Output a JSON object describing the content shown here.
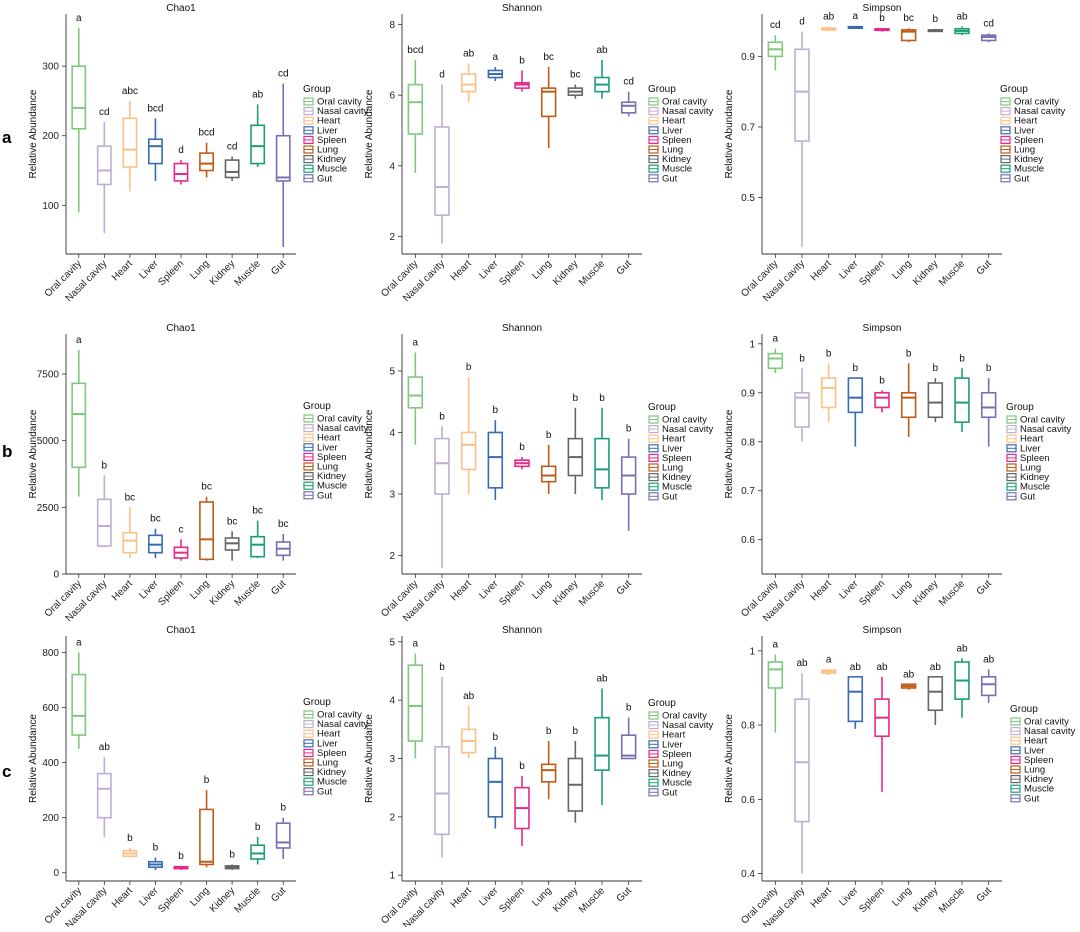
{
  "figure": {
    "group_legend_title": "Group",
    "y_axis_label": "Relative Abundance",
    "groups": [
      "Oral cavity",
      "Nasal cavity",
      "Heart",
      "Liver",
      "Spleen",
      "Lung",
      "Kidney",
      "Muscle",
      "Gut"
    ],
    "group_colors": [
      "#7fc97f",
      "#beaed4",
      "#fdc086",
      "#386cb0",
      "#e7298a",
      "#bf5b17",
      "#666666",
      "#1b9e77",
      "#7570b3"
    ],
    "row_labels": [
      "a",
      "b",
      "c"
    ]
  },
  "chart_data": [
    {
      "type": "box",
      "row": "a",
      "title": "Chao1",
      "ylabel": "Relative Abundance",
      "categories": [
        "Oral cavity",
        "Nasal cavity",
        "Heart",
        "Liver",
        "Spleen",
        "Lung",
        "Kidney",
        "Muscle",
        "Gut"
      ],
      "ylim": [
        30,
        375
      ],
      "yticks": [
        100,
        200,
        300
      ],
      "boxes": [
        [
          90,
          210,
          240,
          300,
          355
        ],
        [
          60,
          130,
          150,
          185,
          220
        ],
        [
          120,
          155,
          180,
          225,
          250
        ],
        [
          135,
          160,
          185,
          195,
          225
        ],
        [
          130,
          135,
          145,
          160,
          165
        ],
        [
          140,
          150,
          160,
          175,
          190
        ],
        [
          135,
          140,
          148,
          165,
          170
        ],
        [
          155,
          160,
          185,
          215,
          245
        ],
        [
          40,
          135,
          140,
          200,
          275
        ]
      ],
      "letters": [
        "a",
        "cd",
        "abc",
        "bcd",
        "d",
        "bcd",
        "cd",
        "ab",
        "cd"
      ]
    },
    {
      "type": "box",
      "row": "a",
      "title": "Shannon",
      "ylabel": "Relative Abundance",
      "categories": [
        "Oral cavity",
        "Nasal cavity",
        "Heart",
        "Liver",
        "Spleen",
        "Lung",
        "Kidney",
        "Muscle",
        "Gut"
      ],
      "ylim": [
        1.5,
        8.3
      ],
      "yticks": [
        2,
        4,
        6,
        8
      ],
      "boxes": [
        [
          3.8,
          4.9,
          5.8,
          6.3,
          7.0
        ],
        [
          1.8,
          2.6,
          3.4,
          5.1,
          6.3
        ],
        [
          5.8,
          6.1,
          6.3,
          6.6,
          6.9
        ],
        [
          6.4,
          6.5,
          6.6,
          6.7,
          6.8
        ],
        [
          6.1,
          6.2,
          6.3,
          6.35,
          6.7
        ],
        [
          4.5,
          5.4,
          6.1,
          6.2,
          6.8
        ],
        [
          5.9,
          6.0,
          6.1,
          6.2,
          6.3
        ],
        [
          5.9,
          6.1,
          6.3,
          6.5,
          7.0
        ],
        [
          5.4,
          5.5,
          5.7,
          5.8,
          6.1
        ]
      ],
      "letters": [
        "bcd",
        "d",
        "ab",
        "a",
        "b",
        "bc",
        "bc",
        "ab",
        "cd"
      ]
    },
    {
      "type": "box",
      "row": "a",
      "title": "Simpson",
      "ylabel": "Relative Abundance",
      "categories": [
        "Oral cavity",
        "Nasal cavity",
        "Heart",
        "Liver",
        "Spleen",
        "Lung",
        "Kidney",
        "Muscle",
        "Gut"
      ],
      "ylim": [
        0.34,
        1.02
      ],
      "yticks": [
        0.5,
        0.7,
        0.9
      ],
      "boxes": [
        [
          0.86,
          0.9,
          0.92,
          0.94,
          0.96
        ],
        [
          0.36,
          0.66,
          0.8,
          0.92,
          0.97
        ],
        [
          0.975,
          0.975,
          0.978,
          0.98,
          0.985
        ],
        [
          0.978,
          0.98,
          0.982,
          0.984,
          0.986
        ],
        [
          0.97,
          0.975,
          0.977,
          0.978,
          0.98
        ],
        [
          0.94,
          0.945,
          0.97,
          0.975,
          0.98
        ],
        [
          0.97,
          0.972,
          0.974,
          0.975,
          0.978
        ],
        [
          0.96,
          0.965,
          0.972,
          0.978,
          0.985
        ],
        [
          0.94,
          0.945,
          0.955,
          0.96,
          0.965
        ]
      ],
      "letters": [
        "cd",
        "d",
        "ab",
        "a",
        "b",
        "bc",
        "b",
        "ab",
        "cd"
      ]
    },
    {
      "type": "box",
      "row": "b",
      "title": "Chao1",
      "ylabel": "Relative Abundance",
      "categories": [
        "Oral cavity",
        "Nasal cavity",
        "Heart",
        "Liver",
        "Spleen",
        "Lung",
        "Kidney",
        "Muscle",
        "Gut"
      ],
      "ylim": [
        0,
        9000
      ],
      "yticks": [
        0,
        2500,
        5000,
        7500
      ],
      "boxes": [
        [
          2900,
          4000,
          6000,
          7150,
          8400
        ],
        [
          1000,
          1050,
          1800,
          2800,
          3700
        ],
        [
          600,
          800,
          1250,
          1550,
          2500
        ],
        [
          600,
          800,
          1100,
          1450,
          1700
        ],
        [
          500,
          600,
          800,
          1000,
          1300
        ],
        [
          500,
          550,
          1300,
          2700,
          2900
        ],
        [
          500,
          900,
          1150,
          1350,
          1600
        ],
        [
          600,
          650,
          1100,
          1400,
          2000
        ],
        [
          500,
          700,
          950,
          1200,
          1500
        ]
      ],
      "letters": [
        "a",
        "b",
        "bc",
        "bc",
        "c",
        "bc",
        "bc",
        "bc",
        "bc"
      ]
    },
    {
      "type": "box",
      "row": "b",
      "title": "Shannon",
      "ylabel": "Relative Abundance",
      "categories": [
        "Oral cavity",
        "Nasal cavity",
        "Heart",
        "Liver",
        "Spleen",
        "Lung",
        "Kidney",
        "Muscle",
        "Gut"
      ],
      "ylim": [
        1.7,
        5.6
      ],
      "yticks": [
        2,
        3,
        4,
        5
      ],
      "boxes": [
        [
          3.8,
          4.4,
          4.6,
          4.9,
          5.3
        ],
        [
          1.8,
          3.0,
          3.5,
          3.9,
          4.1
        ],
        [
          3.0,
          3.4,
          3.8,
          4.0,
          4.9
        ],
        [
          2.9,
          3.1,
          3.6,
          4.0,
          4.2
        ],
        [
          3.4,
          3.45,
          3.5,
          3.55,
          3.6
        ],
        [
          3.0,
          3.2,
          3.3,
          3.45,
          3.8
        ],
        [
          3.0,
          3.3,
          3.6,
          3.9,
          4.4
        ],
        [
          2.9,
          3.1,
          3.4,
          3.9,
          4.4
        ],
        [
          2.4,
          3.0,
          3.3,
          3.6,
          3.9
        ]
      ],
      "letters": [
        "a",
        "b",
        "b",
        "b",
        "b",
        "b",
        "b",
        "b",
        "b"
      ]
    },
    {
      "type": "box",
      "row": "b",
      "title": "Simpson",
      "ylabel": "Relative Abundance",
      "categories": [
        "Oral cavity",
        "Nasal cavity",
        "Heart",
        "Liver",
        "Spleen",
        "Lung",
        "Kidney",
        "Muscle",
        "Gut"
      ],
      "ylim": [
        0.53,
        1.02
      ],
      "yticks": [
        0.6,
        0.7,
        0.8,
        0.9,
        1.0
      ],
      "boxes": [
        [
          0.94,
          0.95,
          0.97,
          0.98,
          0.99
        ],
        [
          0.8,
          0.83,
          0.89,
          0.9,
          0.95
        ],
        [
          0.84,
          0.87,
          0.91,
          0.93,
          0.96
        ],
        [
          0.79,
          0.86,
          0.89,
          0.93,
          0.93
        ],
        [
          0.86,
          0.87,
          0.89,
          0.9,
          0.905
        ],
        [
          0.81,
          0.85,
          0.89,
          0.9,
          0.96
        ],
        [
          0.84,
          0.85,
          0.88,
          0.92,
          0.93
        ],
        [
          0.82,
          0.84,
          0.88,
          0.93,
          0.95
        ],
        [
          0.79,
          0.85,
          0.87,
          0.9,
          0.93
        ]
      ],
      "letters": [
        "a",
        "b",
        "b",
        "b",
        "b",
        "b",
        "b",
        "b",
        "b"
      ]
    },
    {
      "type": "box",
      "row": "c",
      "title": "Chao1",
      "ylabel": "Relative Abundance",
      "categories": [
        "Oral cavity",
        "Nasal cavity",
        "Heart",
        "Liver",
        "Spleen",
        "Lung",
        "Kidney",
        "Muscle",
        "Gut"
      ],
      "ylim": [
        -30,
        860
      ],
      "yticks": [
        0,
        200,
        400,
        600,
        800
      ],
      "boxes": [
        [
          450,
          500,
          570,
          720,
          800
        ],
        [
          130,
          200,
          305,
          360,
          420
        ],
        [
          55,
          60,
          70,
          80,
          90
        ],
        [
          10,
          20,
          30,
          40,
          55
        ],
        [
          10,
          15,
          20,
          22,
          25
        ],
        [
          20,
          30,
          40,
          230,
          300
        ],
        [
          10,
          15,
          20,
          25,
          30
        ],
        [
          30,
          50,
          70,
          100,
          130
        ],
        [
          50,
          90,
          110,
          180,
          200
        ]
      ],
      "letters": [
        "a",
        "ab",
        "b",
        "b",
        "b",
        "b",
        "b",
        "b",
        "b"
      ]
    },
    {
      "type": "box",
      "row": "c",
      "title": "Shannon",
      "ylabel": "Relative Abundance",
      "categories": [
        "Oral cavity",
        "Nasal cavity",
        "Heart",
        "Liver",
        "Spleen",
        "Lung",
        "Kidney",
        "Muscle",
        "Gut"
      ],
      "ylim": [
        0.9,
        5.1
      ],
      "yticks": [
        1,
        2,
        3,
        4,
        5
      ],
      "boxes": [
        [
          3.0,
          3.3,
          3.9,
          4.6,
          4.8
        ],
        [
          1.3,
          1.7,
          2.4,
          3.2,
          4.4
        ],
        [
          3.0,
          3.1,
          3.3,
          3.5,
          3.9
        ],
        [
          1.8,
          2.0,
          2.6,
          3.0,
          3.2
        ],
        [
          1.5,
          1.8,
          2.15,
          2.5,
          2.7
        ],
        [
          2.3,
          2.6,
          2.8,
          2.9,
          3.3
        ],
        [
          1.9,
          2.1,
          2.55,
          3.0,
          3.3
        ],
        [
          2.2,
          2.8,
          3.05,
          3.7,
          4.2
        ],
        [
          3.0,
          3.0,
          3.05,
          3.4,
          3.7
        ]
      ],
      "letters": [
        "a",
        "b",
        "ab",
        "b",
        "b",
        "b",
        "b",
        "ab",
        "b"
      ]
    },
    {
      "type": "box",
      "row": "c",
      "title": "Simpson",
      "ylabel": "Relative Abundance",
      "categories": [
        "Oral cavity",
        "Nasal cavity",
        "Heart",
        "Liver",
        "Spleen",
        "Lung",
        "Kidney",
        "Muscle",
        "Gut"
      ],
      "ylim": [
        0.38,
        1.04
      ],
      "yticks": [
        0.4,
        0.6,
        0.8,
        1.0
      ],
      "boxes": [
        [
          0.78,
          0.9,
          0.95,
          0.97,
          0.99
        ],
        [
          0.4,
          0.54,
          0.7,
          0.87,
          0.94
        ],
        [
          0.935,
          0.94,
          0.945,
          0.948,
          0.95
        ],
        [
          0.79,
          0.81,
          0.89,
          0.93,
          0.93
        ],
        [
          0.62,
          0.77,
          0.82,
          0.87,
          0.93
        ],
        [
          0.895,
          0.9,
          0.905,
          0.91,
          0.91
        ],
        [
          0.8,
          0.84,
          0.89,
          0.93,
          0.93
        ],
        [
          0.82,
          0.87,
          0.92,
          0.97,
          0.98
        ],
        [
          0.86,
          0.88,
          0.91,
          0.93,
          0.95
        ]
      ],
      "letters": [
        "a",
        "ab",
        "a",
        "ab",
        "ab",
        "ab",
        "ab",
        "ab",
        "ab"
      ]
    }
  ]
}
